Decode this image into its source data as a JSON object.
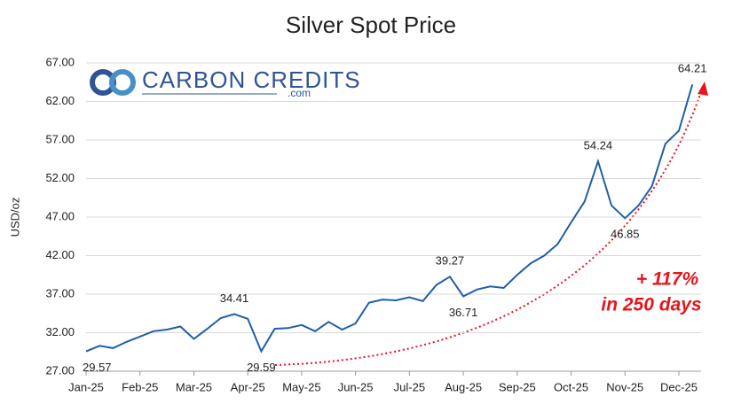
{
  "chart_data": {
    "type": "line",
    "title": "Silver Spot Price",
    "y_label": "USD/oz",
    "logo": {
      "name": "CARBON CREDITS",
      "domain": ".com"
    },
    "annotation": {
      "lines": [
        "+ 117%",
        "in 250 days"
      ],
      "color": "#e8141b"
    },
    "categories": [
      "Jan-25",
      null,
      null,
      null,
      "Feb-25",
      null,
      null,
      null,
      "Mar-25",
      null,
      null,
      null,
      "Apr-25",
      null,
      null,
      null,
      "May-25",
      null,
      null,
      null,
      "Jun-25",
      null,
      null,
      null,
      "Jul-25",
      null,
      null,
      null,
      "Aug-25",
      null,
      null,
      null,
      "Sep-25",
      null,
      null,
      null,
      "Oct-25",
      null,
      null,
      null,
      "Nov-25",
      null,
      null,
      null,
      "Dec-25",
      null
    ],
    "series": [
      {
        "name": "Silver",
        "color": "#1f5fa8",
        "values": [
          29.57,
          30.3,
          30.0,
          30.8,
          31.5,
          32.2,
          32.4,
          32.8,
          31.2,
          32.5,
          33.9,
          34.41,
          33.8,
          29.59,
          32.5,
          32.6,
          33.0,
          32.2,
          33.4,
          32.4,
          33.2,
          35.9,
          36.3,
          36.2,
          36.6,
          36.1,
          38.2,
          39.27,
          36.71,
          37.6,
          38.0,
          37.8,
          39.5,
          41.0,
          42.0,
          43.5,
          46.3,
          49.0,
          54.24,
          48.5,
          46.85,
          48.5,
          51.0,
          56.5,
          58.2,
          64.21
        ],
        "value_labels": [
          "29.57",
          null,
          null,
          null,
          null,
          null,
          null,
          null,
          null,
          null,
          null,
          "34.41",
          null,
          "29.59",
          null,
          null,
          null,
          null,
          null,
          null,
          null,
          null,
          null,
          null,
          null,
          null,
          null,
          "39.27",
          "36.71",
          null,
          null,
          null,
          null,
          null,
          null,
          null,
          null,
          null,
          "54.24",
          null,
          "46.85",
          null,
          null,
          null,
          null,
          "64.21"
        ]
      }
    ],
    "ylim": [
      27,
      67
    ],
    "yticks": [
      {
        "value": 27,
        "label": "27.00"
      },
      {
        "value": 32,
        "label": "32.00"
      },
      {
        "value": 37,
        "label": "37.00"
      },
      {
        "value": 42,
        "label": "42.00"
      },
      {
        "value": 47,
        "label": "47.00"
      },
      {
        "value": 52,
        "label": "52.00"
      },
      {
        "value": 57,
        "label": "57.00"
      },
      {
        "value": 62,
        "label": "62.00"
      },
      {
        "value": 67,
        "label": "67.00"
      }
    ],
    "grid": true
  }
}
